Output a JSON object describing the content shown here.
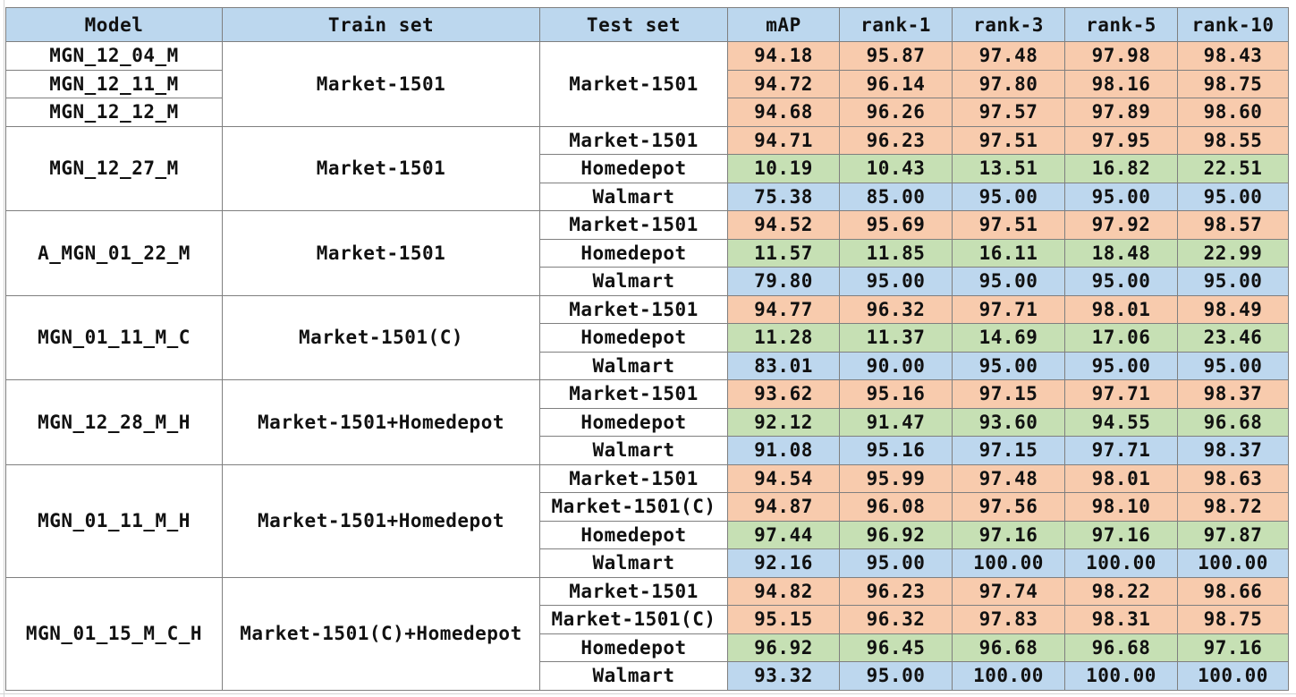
{
  "headers": [
    "Model",
    "Train set",
    "Test set",
    "mAP",
    "rank-1",
    "rank-3",
    "rank-5",
    "rank-10"
  ],
  "colors": {
    "header_bg": "#bcd7ee",
    "market_bg": "#f8cbad",
    "homedepot_bg": "#c6e0b4",
    "walmart_bg": "#bdd7ee",
    "border": "#7f7f7f"
  },
  "group1": {
    "models": [
      "MGN_12_04_M",
      "MGN_12_11_M",
      "MGN_12_12_M"
    ],
    "train": "Market-1501",
    "test": "Market-1501",
    "rows": [
      [
        "94.18",
        "95.87",
        "97.48",
        "97.98",
        "98.43"
      ],
      [
        "94.72",
        "96.14",
        "97.80",
        "98.16",
        "98.75"
      ],
      [
        "94.68",
        "96.26",
        "97.57",
        "97.89",
        "98.60"
      ]
    ]
  },
  "groups": [
    {
      "model": "MGN_12_27_M",
      "train": "Market-1501",
      "tests": [
        {
          "name": "Market-1501",
          "color": "orange",
          "values": [
            "94.71",
            "96.23",
            "97.51",
            "97.95",
            "98.55"
          ]
        },
        {
          "name": "Homedepot",
          "color": "green",
          "values": [
            "10.19",
            "10.43",
            "13.51",
            "16.82",
            "22.51"
          ]
        },
        {
          "name": "Walmart",
          "color": "blue",
          "values": [
            "75.38",
            "85.00",
            "95.00",
            "95.00",
            "95.00"
          ]
        }
      ]
    },
    {
      "model": "A_MGN_01_22_M",
      "train": "Market-1501",
      "tests": [
        {
          "name": "Market-1501",
          "color": "orange",
          "values": [
            "94.52",
            "95.69",
            "97.51",
            "97.92",
            "98.57"
          ]
        },
        {
          "name": "Homedepot",
          "color": "green",
          "values": [
            "11.57",
            "11.85",
            "16.11",
            "18.48",
            "22.99"
          ]
        },
        {
          "name": "Walmart",
          "color": "blue",
          "values": [
            "79.80",
            "95.00",
            "95.00",
            "95.00",
            "95.00"
          ]
        }
      ]
    },
    {
      "model": "MGN_01_11_M_C",
      "train": "Market-1501(C)",
      "tests": [
        {
          "name": "Market-1501",
          "color": "orange",
          "values": [
            "94.77",
            "96.32",
            "97.71",
            "98.01",
            "98.49"
          ]
        },
        {
          "name": "Homedepot",
          "color": "green",
          "values": [
            "11.28",
            "11.37",
            "14.69",
            "17.06",
            "23.46"
          ]
        },
        {
          "name": "Walmart",
          "color": "blue",
          "values": [
            "83.01",
            "90.00",
            "95.00",
            "95.00",
            "95.00"
          ]
        }
      ]
    },
    {
      "model": "MGN_12_28_M_H",
      "train": "Market-1501+Homedepot",
      "tests": [
        {
          "name": "Market-1501",
          "color": "orange",
          "values": [
            "93.62",
            "95.16",
            "97.15",
            "97.71",
            "98.37"
          ]
        },
        {
          "name": "Homedepot",
          "color": "green",
          "values": [
            "92.12",
            "91.47",
            "93.60",
            "94.55",
            "96.68"
          ]
        },
        {
          "name": "Walmart",
          "color": "blue",
          "values": [
            "91.08",
            "95.16",
            "97.15",
            "97.71",
            "98.37"
          ]
        }
      ]
    },
    {
      "model": "MGN_01_11_M_H",
      "train": "Market-1501+Homedepot",
      "tests": [
        {
          "name": "Market-1501",
          "color": "orange",
          "values": [
            "94.54",
            "95.99",
            "97.48",
            "98.01",
            "98.63"
          ]
        },
        {
          "name": "Market-1501(C)",
          "color": "orange",
          "values": [
            "94.87",
            "96.08",
            "97.56",
            "98.10",
            "98.72"
          ]
        },
        {
          "name": "Homedepot",
          "color": "green",
          "values": [
            "97.44",
            "96.92",
            "97.16",
            "97.16",
            "97.87"
          ]
        },
        {
          "name": "Walmart",
          "color": "blue",
          "values": [
            "92.16",
            "95.00",
            "100.00",
            "100.00",
            "100.00"
          ]
        }
      ]
    },
    {
      "model": "MGN_01_15_M_C_H",
      "train": "Market-1501(C)+Homedepot",
      "tests": [
        {
          "name": "Market-1501",
          "color": "orange",
          "values": [
            "94.82",
            "96.23",
            "97.74",
            "98.22",
            "98.66"
          ]
        },
        {
          "name": "Market-1501(C)",
          "color": "orange",
          "values": [
            "95.15",
            "96.32",
            "97.83",
            "98.31",
            "98.75"
          ]
        },
        {
          "name": "Homedepot",
          "color": "green",
          "values": [
            "96.92",
            "96.45",
            "96.68",
            "96.68",
            "97.16"
          ]
        },
        {
          "name": "Walmart",
          "color": "blue",
          "values": [
            "93.32",
            "95.00",
            "100.00",
            "100.00",
            "100.00"
          ]
        }
      ]
    }
  ]
}
